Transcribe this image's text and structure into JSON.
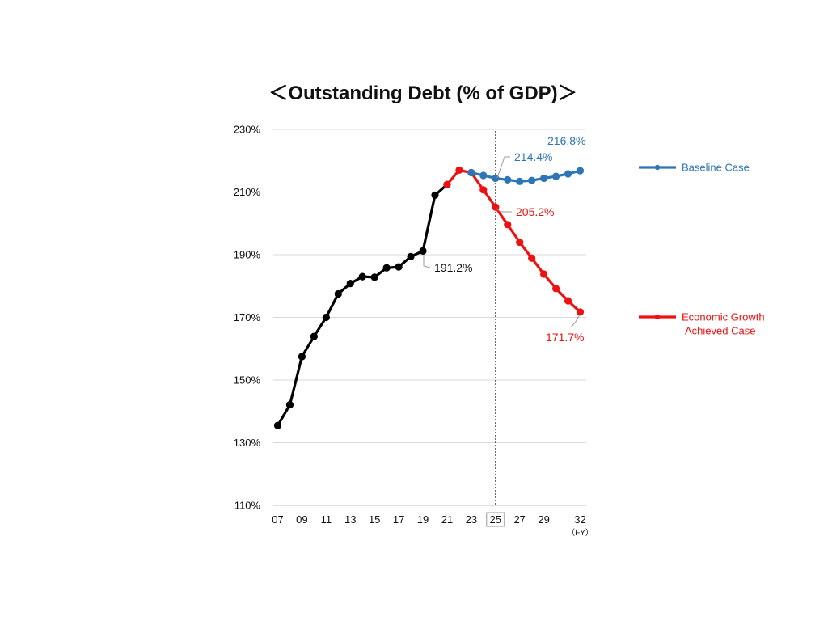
{
  "chart_data": {
    "type": "line",
    "title": "＜Outstanding Debt (% of GDP)＞",
    "xlabel": "",
    "ylabel": "",
    "x_unit": "（FY）",
    "ylim": [
      110,
      230
    ],
    "y_ticks": [
      110,
      130,
      150,
      170,
      190,
      210,
      230
    ],
    "y_tick_labels": [
      "110%",
      "130%",
      "150%",
      "170%",
      "190%",
      "210%",
      "230%"
    ],
    "x_range": [
      7,
      32
    ],
    "x_ticks": [
      7,
      9,
      11,
      13,
      15,
      17,
      19,
      21,
      23,
      25,
      27,
      29,
      32
    ],
    "x_tick_labels": [
      "07",
      "09",
      "11",
      "13",
      "15",
      "17",
      "19",
      "21",
      "23",
      "25",
      "27",
      "29",
      "32"
    ],
    "highlighted_x_tick": "25",
    "grid": true,
    "reference_line_x": 25,
    "legend_placement": "right",
    "series": [
      {
        "key": "historical",
        "color": "#000000",
        "x": [
          7,
          8,
          9,
          10,
          11,
          12,
          13,
          14,
          15,
          16,
          17,
          18,
          19,
          20,
          21
        ],
        "values": [
          135.5,
          142.1,
          157.5,
          163.9,
          170.0,
          177.5,
          180.8,
          183.0,
          182.8,
          185.8,
          186.1,
          189.4,
          191.2,
          209.0,
          212.4
        ]
      },
      {
        "key": "economic_growth",
        "name": "Economic Growth Achieved Case",
        "legend_lines": [
          "Economic Growth",
          "Achieved Case"
        ],
        "color": "#ee1111",
        "x": [
          21,
          22,
          23,
          24,
          25,
          26,
          27,
          28,
          29,
          30,
          31,
          32
        ],
        "values": [
          212.4,
          217.0,
          216.2,
          210.7,
          205.2,
          199.6,
          194.0,
          188.9,
          183.8,
          179.2,
          175.3,
          171.7
        ]
      },
      {
        "key": "baseline",
        "name": "Baseline Case",
        "color": "#2e75b6",
        "x": [
          23,
          24,
          25,
          26,
          27,
          28,
          29,
          30,
          31,
          32
        ],
        "values": [
          216.2,
          215.3,
          214.4,
          213.9,
          213.4,
          213.7,
          214.4,
          215.0,
          215.8,
          216.8
        ]
      }
    ],
    "annotations": [
      {
        "text": "191.2%",
        "color": "#111111",
        "x": 19,
        "y": 191.2
      },
      {
        "text": "214.4%",
        "color": "#2e75b6",
        "x": 25,
        "y": 214.4
      },
      {
        "text": "216.8%",
        "color": "#2e75b6",
        "x": 32,
        "y": 216.8
      },
      {
        "text": "205.2%",
        "color": "#ee1111",
        "x": 25,
        "y": 205.2
      },
      {
        "text": "171.7%",
        "color": "#ee1111",
        "x": 32,
        "y": 171.7
      }
    ]
  }
}
